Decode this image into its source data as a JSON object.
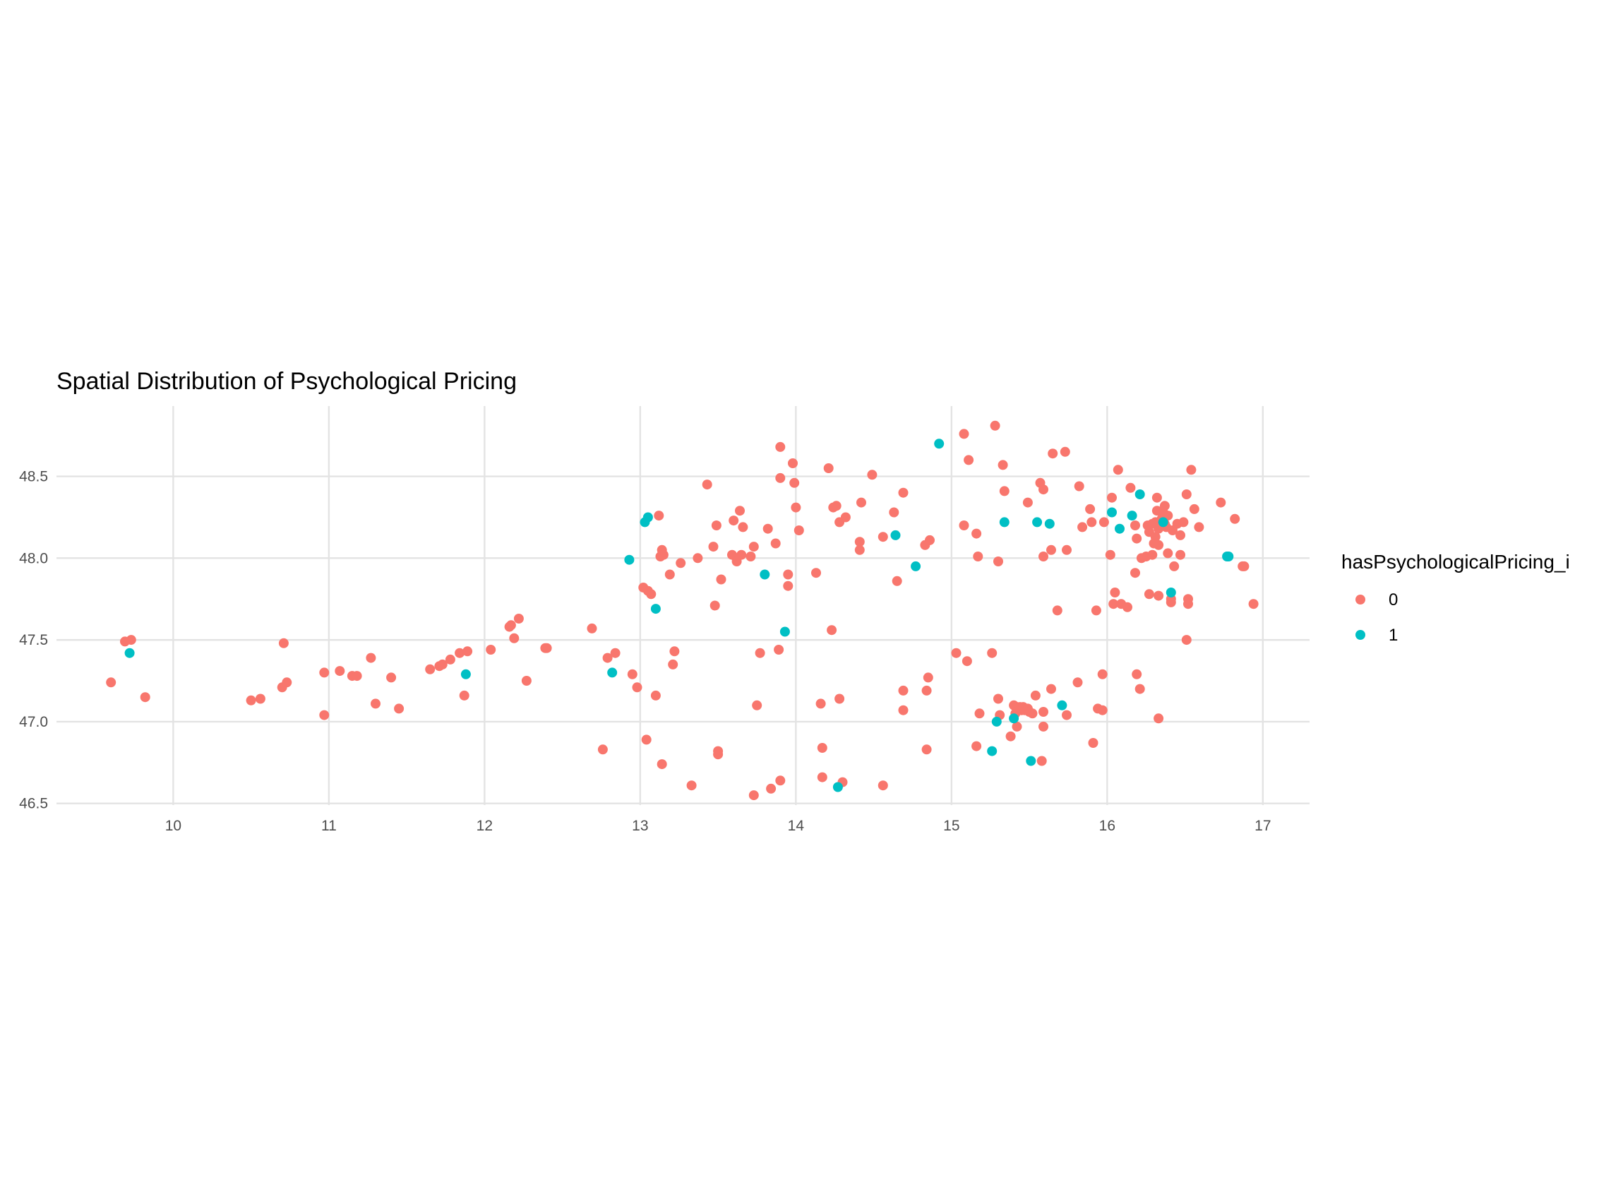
{
  "chart_data": {
    "type": "scatter",
    "title": "Spatial Distribution of Psychological Pricing",
    "xlabel": "",
    "ylabel": "",
    "xlim": [
      9.25,
      17.3
    ],
    "ylim": [
      46.49,
      48.93
    ],
    "x_ticks": [
      10,
      11,
      12,
      13,
      14,
      15,
      16,
      17
    ],
    "y_ticks": [
      46.5,
      47.0,
      47.5,
      48.0,
      48.5
    ],
    "x_tick_labels": [
      "10",
      "11",
      "12",
      "13",
      "14",
      "15",
      "16",
      "17"
    ],
    "y_tick_labels": [
      "46.5",
      "47.0",
      "47.5",
      "48.0",
      "48.5"
    ],
    "grid": true,
    "legend": {
      "title": "hasPsychologicalPricing_i",
      "position": "right",
      "entries": [
        {
          "label": "0",
          "color": "#F8766D"
        },
        {
          "label": "1",
          "color": "#00BFC4"
        }
      ]
    },
    "series": [
      {
        "name": "0",
        "color": "#F8766D",
        "points": [
          [
            9.6,
            47.24
          ],
          [
            9.69,
            47.49
          ],
          [
            9.73,
            47.5
          ],
          [
            9.82,
            47.15
          ],
          [
            10.5,
            47.13
          ],
          [
            10.56,
            47.14
          ],
          [
            10.7,
            47.21
          ],
          [
            10.71,
            47.48
          ],
          [
            10.73,
            47.24
          ],
          [
            10.97,
            47.04
          ],
          [
            10.97,
            47.3
          ],
          [
            11.07,
            47.31
          ],
          [
            11.15,
            47.28
          ],
          [
            11.18,
            47.28
          ],
          [
            11.27,
            47.39
          ],
          [
            11.3,
            47.11
          ],
          [
            11.4,
            47.27
          ],
          [
            11.45,
            47.08
          ],
          [
            11.65,
            47.32
          ],
          [
            11.71,
            47.34
          ],
          [
            11.73,
            47.35
          ],
          [
            11.78,
            47.38
          ],
          [
            11.84,
            47.42
          ],
          [
            11.87,
            47.16
          ],
          [
            11.89,
            47.43
          ],
          [
            12.04,
            47.44
          ],
          [
            12.16,
            47.58
          ],
          [
            12.17,
            47.59
          ],
          [
            12.19,
            47.51
          ],
          [
            12.22,
            47.63
          ],
          [
            12.27,
            47.25
          ],
          [
            12.39,
            47.45
          ],
          [
            12.4,
            47.45
          ],
          [
            12.69,
            47.57
          ],
          [
            12.76,
            46.83
          ],
          [
            12.79,
            47.39
          ],
          [
            12.84,
            47.42
          ],
          [
            12.95,
            47.29
          ],
          [
            12.98,
            47.21
          ],
          [
            13.02,
            47.82
          ],
          [
            13.05,
            47.8
          ],
          [
            13.07,
            47.78
          ],
          [
            13.04,
            46.89
          ],
          [
            13.1,
            47.16
          ],
          [
            13.12,
            48.26
          ],
          [
            13.13,
            48.01
          ],
          [
            13.14,
            48.05
          ],
          [
            13.15,
            48.02
          ],
          [
            13.14,
            46.74
          ],
          [
            13.19,
            47.9
          ],
          [
            13.21,
            47.35
          ],
          [
            13.22,
            47.43
          ],
          [
            13.26,
            47.97
          ],
          [
            13.33,
            46.61
          ],
          [
            13.37,
            48.0
          ],
          [
            13.43,
            48.45
          ],
          [
            13.47,
            48.07
          ],
          [
            13.48,
            47.71
          ],
          [
            13.49,
            48.2
          ],
          [
            13.5,
            46.82
          ],
          [
            13.5,
            46.8
          ],
          [
            13.52,
            47.87
          ],
          [
            13.6,
            48.23
          ],
          [
            13.59,
            48.02
          ],
          [
            13.62,
            47.98
          ],
          [
            13.64,
            48.29
          ],
          [
            13.66,
            48.19
          ],
          [
            13.65,
            48.02
          ],
          [
            13.71,
            48.01
          ],
          [
            13.73,
            48.07
          ],
          [
            13.75,
            47.1
          ],
          [
            13.77,
            47.42
          ],
          [
            13.73,
            46.55
          ],
          [
            13.82,
            48.18
          ],
          [
            13.84,
            46.59
          ],
          [
            13.87,
            48.09
          ],
          [
            13.9,
            48.68
          ],
          [
            13.9,
            48.49
          ],
          [
            13.89,
            47.44
          ],
          [
            13.9,
            46.64
          ],
          [
            13.95,
            47.9
          ],
          [
            13.95,
            47.83
          ],
          [
            13.98,
            48.58
          ],
          [
            13.99,
            48.46
          ],
          [
            14.0,
            48.31
          ],
          [
            14.02,
            48.17
          ],
          [
            14.13,
            47.91
          ],
          [
            14.16,
            47.11
          ],
          [
            14.17,
            46.84
          ],
          [
            14.17,
            46.66
          ],
          [
            14.21,
            48.55
          ],
          [
            14.23,
            47.56
          ],
          [
            14.24,
            48.31
          ],
          [
            14.26,
            48.32
          ],
          [
            14.28,
            48.22
          ],
          [
            14.28,
            47.14
          ],
          [
            14.3,
            46.63
          ],
          [
            14.32,
            48.25
          ],
          [
            14.41,
            48.05
          ],
          [
            14.41,
            48.1
          ],
          [
            14.42,
            48.34
          ],
          [
            14.49,
            48.51
          ],
          [
            14.56,
            48.13
          ],
          [
            14.56,
            46.61
          ],
          [
            14.63,
            48.28
          ],
          [
            14.65,
            47.86
          ],
          [
            14.69,
            48.4
          ],
          [
            14.69,
            47.19
          ],
          [
            14.69,
            47.07
          ],
          [
            14.83,
            48.08
          ],
          [
            14.86,
            48.11
          ],
          [
            14.85,
            47.27
          ],
          [
            14.84,
            47.19
          ],
          [
            14.84,
            46.83
          ],
          [
            15.03,
            47.42
          ],
          [
            15.08,
            48.76
          ],
          [
            15.08,
            48.2
          ],
          [
            15.11,
            48.6
          ],
          [
            15.1,
            47.37
          ],
          [
            15.16,
            48.15
          ],
          [
            15.16,
            46.85
          ],
          [
            15.17,
            48.01
          ],
          [
            15.18,
            47.05
          ],
          [
            15.26,
            47.42
          ],
          [
            15.28,
            48.81
          ],
          [
            15.3,
            47.98
          ],
          [
            15.3,
            47.14
          ],
          [
            15.31,
            47.04
          ],
          [
            15.33,
            48.57
          ],
          [
            15.34,
            48.41
          ],
          [
            15.38,
            46.91
          ],
          [
            15.4,
            47.1
          ],
          [
            15.41,
            47.05
          ],
          [
            15.42,
            47.09
          ],
          [
            15.42,
            46.97
          ],
          [
            15.44,
            47.09
          ],
          [
            15.45,
            47.07
          ],
          [
            15.46,
            47.09
          ],
          [
            15.47,
            47.07
          ],
          [
            15.49,
            47.08
          ],
          [
            15.5,
            47.06
          ],
          [
            15.49,
            48.34
          ],
          [
            15.52,
            47.05
          ],
          [
            15.54,
            47.16
          ],
          [
            15.57,
            48.46
          ],
          [
            15.58,
            46.76
          ],
          [
            15.59,
            48.42
          ],
          [
            15.59,
            48.01
          ],
          [
            15.59,
            46.97
          ],
          [
            15.59,
            47.06
          ],
          [
            15.65,
            48.64
          ],
          [
            15.64,
            48.05
          ],
          [
            15.64,
            47.2
          ],
          [
            15.68,
            47.68
          ],
          [
            15.73,
            48.65
          ],
          [
            15.74,
            48.05
          ],
          [
            15.74,
            47.04
          ],
          [
            15.81,
            47.24
          ],
          [
            15.82,
            48.44
          ],
          [
            15.84,
            48.19
          ],
          [
            15.89,
            48.3
          ],
          [
            15.9,
            48.22
          ],
          [
            15.91,
            46.87
          ],
          [
            15.93,
            47.68
          ],
          [
            15.94,
            47.08
          ],
          [
            15.97,
            47.07
          ],
          [
            15.97,
            47.29
          ],
          [
            15.98,
            48.22
          ],
          [
            16.02,
            48.02
          ],
          [
            16.03,
            48.37
          ],
          [
            16.04,
            47.72
          ],
          [
            16.05,
            47.79
          ],
          [
            16.07,
            48.54
          ],
          [
            16.09,
            47.72
          ],
          [
            16.13,
            47.7
          ],
          [
            16.15,
            48.43
          ],
          [
            16.18,
            48.2
          ],
          [
            16.18,
            47.91
          ],
          [
            16.19,
            48.12
          ],
          [
            16.19,
            47.29
          ],
          [
            16.21,
            47.2
          ],
          [
            16.22,
            48.0
          ],
          [
            16.25,
            48.01
          ],
          [
            16.26,
            48.2
          ],
          [
            16.27,
            48.16
          ],
          [
            16.27,
            47.78
          ],
          [
            16.29,
            48.21
          ],
          [
            16.29,
            48.02
          ],
          [
            16.3,
            48.09
          ],
          [
            16.31,
            48.13
          ],
          [
            16.31,
            48.22
          ],
          [
            16.32,
            48.29
          ],
          [
            16.32,
            48.37
          ],
          [
            16.33,
            48.18
          ],
          [
            16.33,
            48.08
          ],
          [
            16.33,
            47.77
          ],
          [
            16.33,
            47.02
          ],
          [
            16.35,
            48.24
          ],
          [
            16.36,
            48.28
          ],
          [
            16.37,
            48.32
          ],
          [
            16.37,
            48.21
          ],
          [
            16.38,
            48.19
          ],
          [
            16.39,
            48.26
          ],
          [
            16.39,
            48.03
          ],
          [
            16.41,
            47.73
          ],
          [
            16.41,
            47.75
          ],
          [
            16.42,
            48.17
          ],
          [
            16.43,
            47.95
          ],
          [
            16.45,
            48.21
          ],
          [
            16.47,
            48.14
          ],
          [
            16.47,
            48.02
          ],
          [
            16.49,
            48.22
          ],
          [
            16.51,
            48.39
          ],
          [
            16.52,
            47.75
          ],
          [
            16.52,
            47.72
          ],
          [
            16.51,
            47.5
          ],
          [
            16.54,
            48.54
          ],
          [
            16.56,
            48.3
          ],
          [
            16.59,
            48.19
          ],
          [
            16.73,
            48.34
          ],
          [
            16.82,
            48.24
          ],
          [
            16.87,
            47.95
          ],
          [
            16.88,
            47.95
          ],
          [
            16.94,
            47.72
          ]
        ]
      },
      {
        "name": "1",
        "color": "#00BFC4",
        "points": [
          [
            9.72,
            47.42
          ],
          [
            11.88,
            47.29
          ],
          [
            12.82,
            47.3
          ],
          [
            12.93,
            47.99
          ],
          [
            13.03,
            48.22
          ],
          [
            13.05,
            48.25
          ],
          [
            13.1,
            47.69
          ],
          [
            13.8,
            47.9
          ],
          [
            13.93,
            47.55
          ],
          [
            14.27,
            46.6
          ],
          [
            14.64,
            48.14
          ],
          [
            14.77,
            47.95
          ],
          [
            14.92,
            48.7
          ],
          [
            15.26,
            46.82
          ],
          [
            15.29,
            47.0
          ],
          [
            15.34,
            48.22
          ],
          [
            15.4,
            47.02
          ],
          [
            15.51,
            46.76
          ],
          [
            15.55,
            48.22
          ],
          [
            15.63,
            48.21
          ],
          [
            15.71,
            47.1
          ],
          [
            16.03,
            48.28
          ],
          [
            16.08,
            48.18
          ],
          [
            16.16,
            48.26
          ],
          [
            16.21,
            48.39
          ],
          [
            16.36,
            48.22
          ],
          [
            16.41,
            47.79
          ],
          [
            16.77,
            48.01
          ],
          [
            16.78,
            48.01
          ]
        ]
      }
    ]
  }
}
